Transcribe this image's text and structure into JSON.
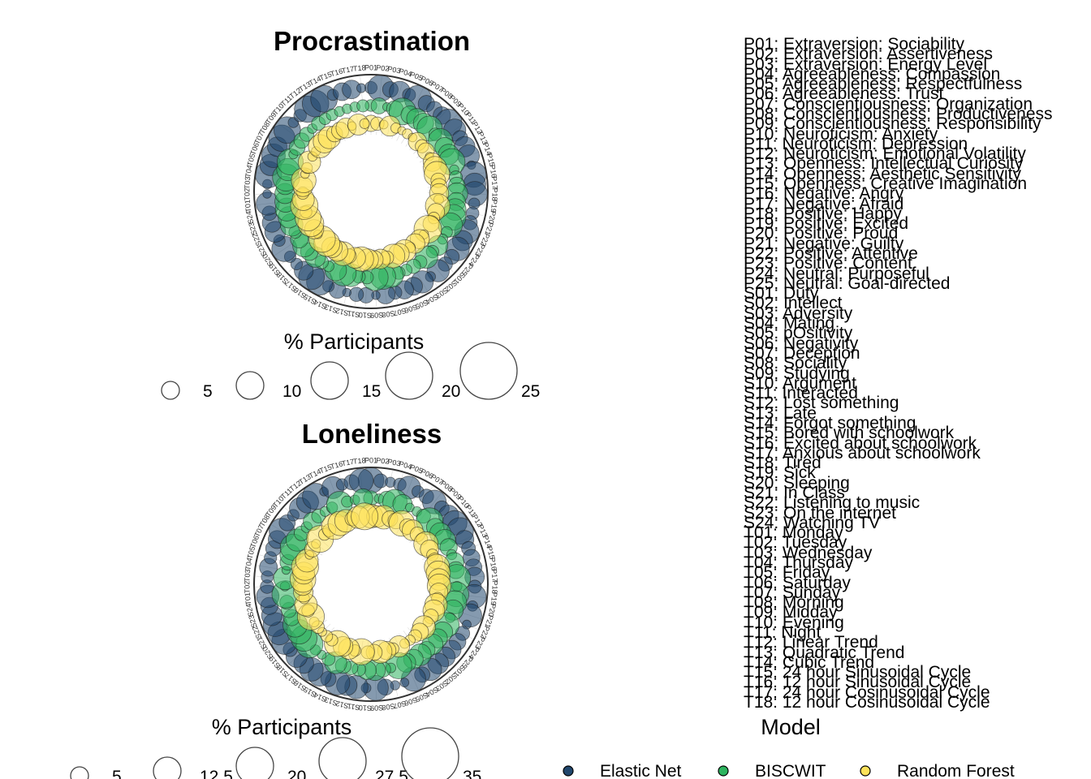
{
  "chart_data": {
    "type": "scatter",
    "description_of_encoding": "",
    "panels": [
      {
        "title": "Procrastination",
        "size_legend": {
          "title": "% Participants",
          "breaks": [
            "5",
            "10",
            "15",
            "20",
            "25"
          ]
        }
      },
      {
        "title": "Loneliness",
        "size_legend": {
          "title": "% Participants",
          "breaks": [
            "5",
            "12.5",
            "20",
            "27.5",
            "35"
          ]
        }
      }
    ],
    "color_legend": {
      "title": "Model",
      "entries": [
        {
          "name": "Elastic Net",
          "color": "#21476d"
        },
        {
          "name": "BISCWIT",
          "color": "#2db35e"
        },
        {
          "name": "Random Forest",
          "color": "#fde25a"
        }
      ]
    },
    "predictor_key": [
      "P01: Extraversion: Sociability",
      "P02: Extraversion: Assertiveness",
      "P03: Extraversion: Energy Level",
      "P04: Agreeableness: Compassion",
      "P05: Agreeableness: Respectfulness",
      "P06: Agreeableness: Trust",
      "P07: Conscientiousness: Organization",
      "P08: Conscientiousness: Productiveness",
      "P09: Conscientiousness: Responsibility",
      "P10: Neuroticism: Anxiety",
      "P11: Neuroticism: Depression",
      "P12: Neuroticism: Emotional Volatility",
      "P13: Openness: Intellectual Curiosity",
      "P14: Openness: Aesthetic Sensitivity",
      "P15: Openness: Creative Imagination",
      "P16: Negative: Angry",
      "P17: Negative: Afraid",
      "P18: Positive: Happy",
      "P19: Positive: Excited",
      "P20: Positive: Proud",
      "P21: Negative: Guilty",
      "P22: Positive: Attentive",
      "P23: Positive: Content",
      "P24: Neutral: Purposeful",
      "P25: Neutral: Goal-directed",
      "S01: Duty",
      "S02: Intellect",
      "S03: Adversity",
      "S04: Mating",
      "S05: pOsitivity",
      "S06: Negativity",
      "S07: Deception",
      "S08: Sociality",
      "S09: Studying",
      "S10: Argument",
      "S11: Interacted",
      "S12: Lost something",
      "S13: Late",
      "S14: Forgot something",
      "S15: Bored with schoolwork",
      "S16: Excited about schoolwork",
      "S17: Anxious about schoolwork",
      "S18: Tired",
      "S19: Sick",
      "S20: Sleeping",
      "S21: In Class",
      "S22: Listening to music",
      "S23: On the internet",
      "S24: Watching TV",
      "T01: Monday",
      "T02: Tuesday",
      "T03: Wednesday",
      "T04: Thursday",
      "T05: Friday",
      "T06: Saturday",
      "T07: Sunday",
      "T08: Morning",
      "T09: Midday",
      "T10: Evening",
      "T11: Night",
      "T12: Linear Trend",
      "T13: Quadratic Trend",
      "T14: Cubic Trend",
      "T15: 24 hour Sinusoidal Cycle",
      "T16: 12 hour Sinusoidal Cycle",
      "T17: 24 hour Cosinusoidal Cycle",
      "T18: 12 hour Cosinusoidal Cycle"
    ]
  }
}
